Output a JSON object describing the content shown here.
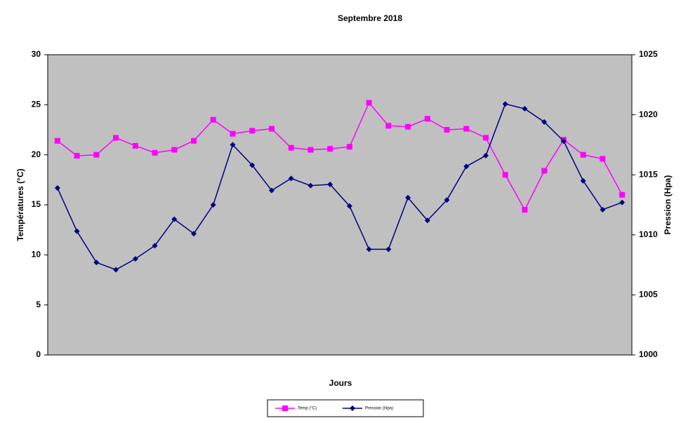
{
  "chart_data": {
    "type": "line",
    "title": "Septembre 2018",
    "x_label": "Jours",
    "y_label": "Températures (°C)",
    "y2_label": "Pression (Hpa)",
    "categories": [
      null,
      null,
      null,
      null,
      null,
      null,
      null,
      null,
      null,
      null,
      null,
      null,
      null,
      null,
      null,
      null,
      null,
      null,
      null,
      null,
      null,
      null,
      null,
      null,
      null,
      null,
      null,
      null,
      null,
      null
    ],
    "series": [
      {
        "name": "Temp (°C)",
        "color": "#ff00ff",
        "marker": "square",
        "values": [
          21.4,
          19.9,
          20.0,
          21.7,
          20.9,
          20.2,
          20.5,
          21.4,
          23.5,
          22.1,
          22.4,
          22.6,
          20.7,
          20.5,
          20.6,
          20.8,
          25.2,
          22.9,
          22.8,
          23.6,
          22.5,
          22.6,
          21.7,
          18.0,
          14.5,
          18.4,
          21.5,
          20.0,
          19.6,
          16.0
        ]
      },
      {
        "name": "Pression (Hpa)",
        "color": "#000080",
        "marker": "diamond",
        "axis": "y2",
        "values": [
          1013.9,
          1010.3,
          1007.7,
          1007.1,
          1008.0,
          1009.1,
          1011.3,
          1010.1,
          1012.5,
          1017.5,
          1015.8,
          1013.7,
          1014.7,
          1014.1,
          1014.2,
          1012.4,
          1008.8,
          1008.8,
          1013.1,
          1011.2,
          1012.9,
          1015.7,
          1016.6,
          1020.9,
          1020.5,
          1019.4,
          1017.8,
          1014.5,
          1012.1,
          1012.7
        ]
      }
    ],
    "ylim": [
      0,
      30
    ],
    "yticks": [
      0,
      5,
      10,
      15,
      20,
      25,
      30
    ],
    "y2lim": [
      1000,
      1025
    ],
    "y2ticks": [
      1000,
      1005,
      1010,
      1015,
      1020,
      1025
    ],
    "plot_background": "#c0c0c0",
    "legend": "bottom"
  }
}
